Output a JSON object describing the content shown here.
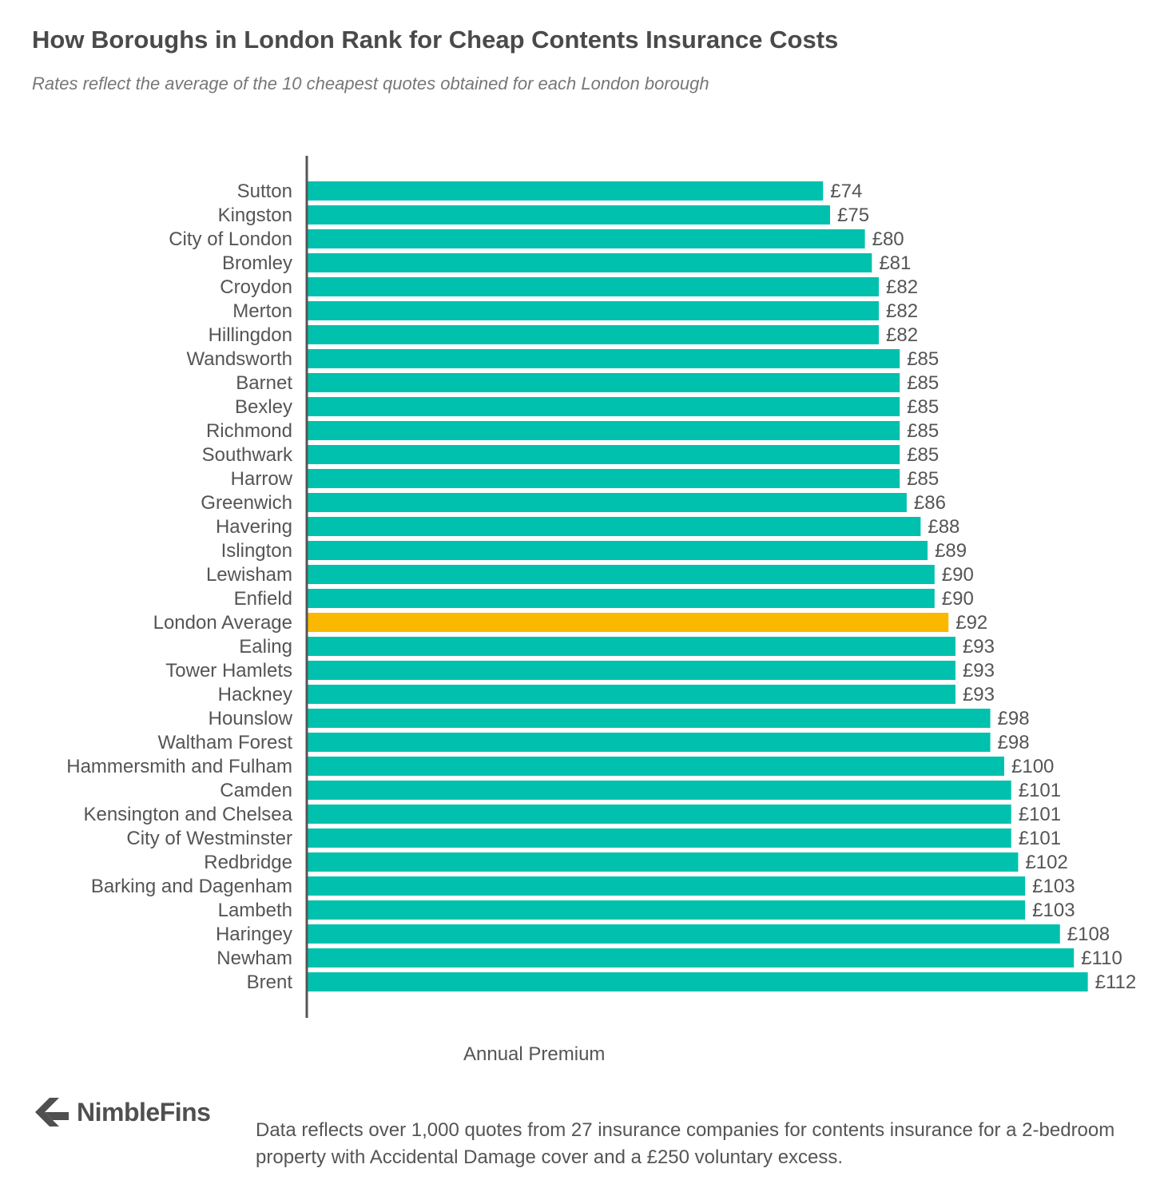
{
  "header": {
    "title": "How Boroughs in London Rank for Cheap Contents Insurance Costs",
    "subtitle": "Rates reflect the average of the 10 cheapest quotes obtained for each London borough"
  },
  "chart_data": {
    "type": "bar",
    "orientation": "horizontal",
    "title": "How Boroughs in London Rank for Cheap Contents Insurance Costs",
    "subtitle": "Rates reflect the average of the 10 cheapest quotes obtained for each London borough",
    "xlabel": "Annual Premium",
    "ylabel": "",
    "value_prefix": "£",
    "xlim": [
      0,
      112
    ],
    "grid": false,
    "categories": [
      "Sutton",
      "Kingston",
      "City of London",
      "Bromley",
      "Croydon",
      "Merton",
      "Hillingdon",
      "Wandsworth",
      "Barnet",
      "Bexley",
      "Richmond",
      "Southwark",
      "Harrow",
      "Greenwich",
      "Havering",
      "Islington",
      "Lewisham",
      "Enfield",
      "London Average",
      "Ealing",
      "Tower Hamlets",
      "Hackney",
      "Hounslow",
      "Waltham Forest",
      "Hammersmith and Fulham",
      "Camden",
      "Kensington and Chelsea",
      "City of Westminster",
      "Redbridge",
      "Barking and Dagenham",
      "Lambeth",
      "Haringey",
      "Newham",
      "Brent"
    ],
    "values": [
      74,
      75,
      80,
      81,
      82,
      82,
      82,
      85,
      85,
      85,
      85,
      85,
      85,
      86,
      88,
      89,
      90,
      90,
      92,
      93,
      93,
      93,
      98,
      98,
      100,
      101,
      101,
      101,
      102,
      103,
      103,
      108,
      110,
      112
    ],
    "highlight_category": "London Average",
    "colors": {
      "bar": "#00c1ad",
      "highlight": "#fbb800",
      "axis": "#555555"
    }
  },
  "brand": {
    "name": "NimbleFins",
    "icon": "chevron-logo-icon"
  },
  "footnote": "Data reflects over 1,000 quotes from 27 insurance companies for contents insurance for a 2-bedroom property with Accidental Damage cover and a £250 voluntary excess."
}
